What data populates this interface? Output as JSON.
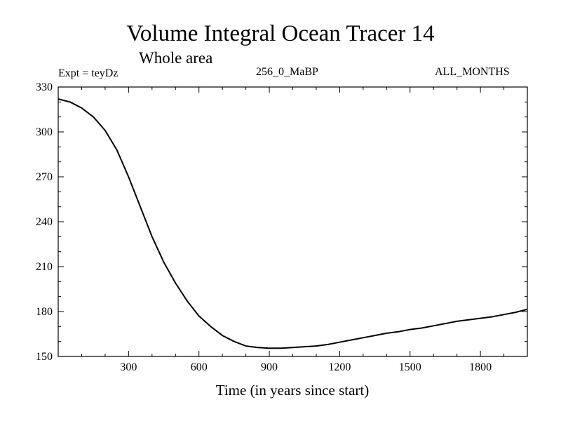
{
  "chart_data": {
    "type": "line",
    "title": "Volume Integral Ocean Tracer 14",
    "subtitle": "Whole area",
    "annotations": {
      "left": "Expt = teyDz",
      "center": "256_0_MaBP",
      "right": "ALL_MONTHS"
    },
    "xlabel": "Time (in years since start)",
    "ylabel": "",
    "xlim": [
      0,
      2000
    ],
    "ylim": [
      150,
      330
    ],
    "xticks": [
      300,
      600,
      900,
      1200,
      1500,
      1800
    ],
    "yticks": [
      150,
      180,
      210,
      240,
      270,
      300,
      330
    ],
    "grid": false,
    "series": [
      {
        "name": "Volume Integral Ocean Tracer 14",
        "x": [
          0,
          50,
          100,
          150,
          200,
          250,
          300,
          350,
          400,
          450,
          500,
          550,
          600,
          650,
          700,
          750,
          800,
          850,
          900,
          950,
          1000,
          1050,
          1100,
          1150,
          1200,
          1250,
          1300,
          1350,
          1400,
          1450,
          1500,
          1550,
          1600,
          1650,
          1700,
          1750,
          1800,
          1850,
          1900,
          1950,
          2000
        ],
        "y": [
          322,
          320,
          316,
          310,
          301,
          288,
          270,
          250,
          230,
          213,
          199,
          187,
          177,
          170,
          164,
          160,
          157,
          156,
          155.5,
          155.5,
          156,
          156.5,
          157,
          158,
          159.5,
          161,
          162.5,
          164,
          165.5,
          166.5,
          168,
          169,
          170.5,
          172,
          173.5,
          174.5,
          175.5,
          176.5,
          178,
          179.5,
          181.5
        ]
      }
    ]
  }
}
